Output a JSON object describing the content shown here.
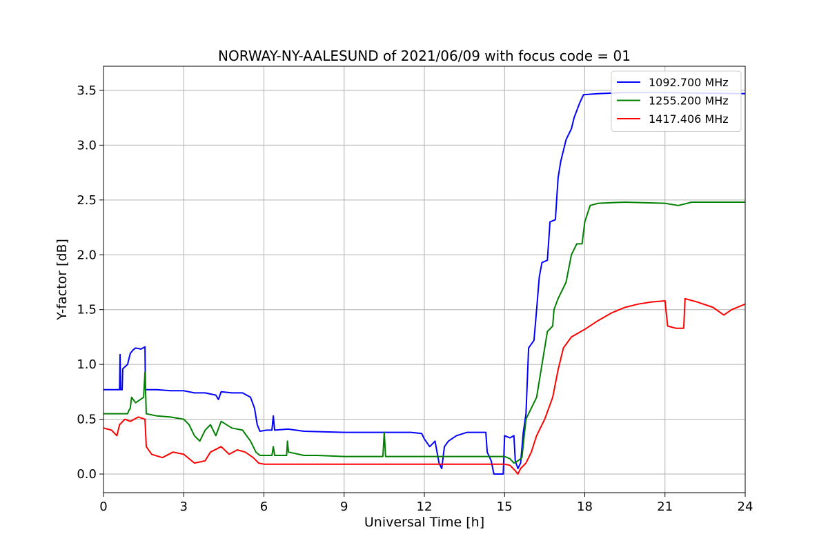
{
  "chart_data": {
    "type": "line",
    "title": "NORWAY-NY-AALESUND of 2021/06/09 with focus code = 01",
    "xlabel": "Universal Time [h]",
    "ylabel": "Y-factor [dB]",
    "xlim": [
      0,
      24
    ],
    "ylim": [
      -0.17,
      3.72
    ],
    "xticks": [
      0,
      3,
      6,
      9,
      12,
      15,
      18,
      21,
      24
    ],
    "yticks": [
      0.0,
      0.5,
      1.0,
      1.5,
      2.0,
      2.5,
      3.0,
      3.5
    ],
    "xtick_labels": [
      "0",
      "3",
      "6",
      "9",
      "12",
      "15",
      "18",
      "21",
      "24"
    ],
    "ytick_labels": [
      "0.0",
      "0.5",
      "1.0",
      "1.5",
      "2.0",
      "2.5",
      "3.0",
      "3.5"
    ],
    "grid": true,
    "legend_position": "top-right",
    "series": [
      {
        "name": "1092.700 MHz",
        "color": "#0000ff",
        "points": [
          [
            0,
            0.77
          ],
          [
            0.6,
            0.77
          ],
          [
            0.62,
            1.09
          ],
          [
            0.64,
            0.77
          ],
          [
            0.7,
            0.77
          ],
          [
            0.72,
            0.96
          ],
          [
            0.9,
            1.0
          ],
          [
            1.0,
            1.1
          ],
          [
            1.1,
            1.13
          ],
          [
            1.2,
            1.15
          ],
          [
            1.4,
            1.14
          ],
          [
            1.55,
            1.16
          ],
          [
            1.57,
            0.77
          ],
          [
            2.0,
            0.77
          ],
          [
            2.5,
            0.76
          ],
          [
            3.0,
            0.76
          ],
          [
            3.4,
            0.74
          ],
          [
            3.8,
            0.74
          ],
          [
            4.2,
            0.72
          ],
          [
            4.3,
            0.68
          ],
          [
            4.4,
            0.75
          ],
          [
            4.8,
            0.74
          ],
          [
            5.2,
            0.74
          ],
          [
            5.5,
            0.7
          ],
          [
            5.65,
            0.6
          ],
          [
            5.75,
            0.45
          ],
          [
            5.85,
            0.39
          ],
          [
            6.1,
            0.4
          ],
          [
            6.3,
            0.4
          ],
          [
            6.35,
            0.53
          ],
          [
            6.4,
            0.4
          ],
          [
            6.9,
            0.41
          ],
          [
            7.5,
            0.39
          ],
          [
            9.0,
            0.38
          ],
          [
            11.5,
            0.38
          ],
          [
            11.9,
            0.37
          ],
          [
            12.0,
            0.32
          ],
          [
            12.2,
            0.25
          ],
          [
            12.4,
            0.3
          ],
          [
            12.55,
            0.1
          ],
          [
            12.65,
            0.05
          ],
          [
            12.75,
            0.25
          ],
          [
            12.9,
            0.3
          ],
          [
            13.2,
            0.35
          ],
          [
            13.6,
            0.38
          ],
          [
            14.3,
            0.38
          ],
          [
            14.35,
            0.2
          ],
          [
            14.5,
            0.12
          ],
          [
            14.6,
            0.0
          ],
          [
            14.95,
            0.0
          ],
          [
            15.0,
            0.35
          ],
          [
            15.2,
            0.33
          ],
          [
            15.35,
            0.35
          ],
          [
            15.4,
            0.12
          ],
          [
            15.5,
            0.05
          ],
          [
            15.6,
            0.1
          ],
          [
            15.7,
            0.38
          ],
          [
            15.8,
            0.55
          ],
          [
            15.9,
            1.15
          ],
          [
            16.1,
            1.22
          ],
          [
            16.2,
            1.5
          ],
          [
            16.3,
            1.8
          ],
          [
            16.4,
            1.93
          ],
          [
            16.6,
            1.95
          ],
          [
            16.7,
            2.3
          ],
          [
            16.9,
            2.32
          ],
          [
            17.0,
            2.7
          ],
          [
            17.1,
            2.85
          ],
          [
            17.3,
            3.05
          ],
          [
            17.5,
            3.15
          ],
          [
            17.6,
            3.25
          ],
          [
            17.8,
            3.38
          ],
          [
            17.95,
            3.46
          ],
          [
            18.5,
            3.47
          ],
          [
            19.5,
            3.48
          ],
          [
            21.0,
            3.48
          ],
          [
            24.0,
            3.47
          ]
        ]
      },
      {
        "name": "1255.200 MHz",
        "color": "#008000",
        "points": [
          [
            0,
            0.55
          ],
          [
            0.9,
            0.55
          ],
          [
            0.95,
            0.58
          ],
          [
            1.0,
            0.6
          ],
          [
            1.05,
            0.7
          ],
          [
            1.2,
            0.65
          ],
          [
            1.5,
            0.7
          ],
          [
            1.55,
            0.93
          ],
          [
            1.6,
            0.55
          ],
          [
            2.0,
            0.53
          ],
          [
            2.5,
            0.52
          ],
          [
            3.0,
            0.5
          ],
          [
            3.2,
            0.45
          ],
          [
            3.4,
            0.35
          ],
          [
            3.6,
            0.3
          ],
          [
            3.8,
            0.4
          ],
          [
            4.0,
            0.45
          ],
          [
            4.2,
            0.35
          ],
          [
            4.4,
            0.48
          ],
          [
            4.8,
            0.42
          ],
          [
            5.2,
            0.4
          ],
          [
            5.5,
            0.3
          ],
          [
            5.7,
            0.2
          ],
          [
            5.85,
            0.17
          ],
          [
            6.3,
            0.17
          ],
          [
            6.35,
            0.25
          ],
          [
            6.4,
            0.17
          ],
          [
            6.85,
            0.17
          ],
          [
            6.88,
            0.3
          ],
          [
            6.92,
            0.2
          ],
          [
            7.5,
            0.17
          ],
          [
            8.0,
            0.17
          ],
          [
            9.0,
            0.16
          ],
          [
            10.45,
            0.16
          ],
          [
            10.5,
            0.38
          ],
          [
            10.55,
            0.16
          ],
          [
            12.0,
            0.16
          ],
          [
            15.0,
            0.16
          ],
          [
            15.2,
            0.14
          ],
          [
            15.35,
            0.1
          ],
          [
            15.5,
            0.12
          ],
          [
            15.65,
            0.15
          ],
          [
            15.8,
            0.5
          ],
          [
            15.9,
            0.55
          ],
          [
            16.2,
            0.7
          ],
          [
            16.4,
            1.0
          ],
          [
            16.6,
            1.3
          ],
          [
            16.8,
            1.35
          ],
          [
            16.85,
            1.5
          ],
          [
            17.0,
            1.6
          ],
          [
            17.3,
            1.75
          ],
          [
            17.5,
            2.0
          ],
          [
            17.7,
            2.1
          ],
          [
            17.9,
            2.1
          ],
          [
            18.0,
            2.3
          ],
          [
            18.2,
            2.45
          ],
          [
            18.5,
            2.47
          ],
          [
            19.5,
            2.48
          ],
          [
            21.0,
            2.47
          ],
          [
            21.5,
            2.45
          ],
          [
            22.0,
            2.48
          ],
          [
            24.0,
            2.48
          ]
        ]
      },
      {
        "name": "1417.406 MHz",
        "color": "#ff0000",
        "points": [
          [
            0,
            0.42
          ],
          [
            0.3,
            0.4
          ],
          [
            0.5,
            0.35
          ],
          [
            0.6,
            0.45
          ],
          [
            0.8,
            0.5
          ],
          [
            1.0,
            0.48
          ],
          [
            1.3,
            0.52
          ],
          [
            1.55,
            0.5
          ],
          [
            1.6,
            0.25
          ],
          [
            1.8,
            0.18
          ],
          [
            2.2,
            0.15
          ],
          [
            2.6,
            0.2
          ],
          [
            3.0,
            0.18
          ],
          [
            3.4,
            0.1
          ],
          [
            3.8,
            0.12
          ],
          [
            4.0,
            0.2
          ],
          [
            4.4,
            0.25
          ],
          [
            4.7,
            0.18
          ],
          [
            5.0,
            0.22
          ],
          [
            5.3,
            0.2
          ],
          [
            5.6,
            0.15
          ],
          [
            5.8,
            0.1
          ],
          [
            6.0,
            0.09
          ],
          [
            9.0,
            0.09
          ],
          [
            12.0,
            0.09
          ],
          [
            15.0,
            0.09
          ],
          [
            15.2,
            0.08
          ],
          [
            15.4,
            0.03
          ],
          [
            15.5,
            0.0
          ],
          [
            15.6,
            0.05
          ],
          [
            15.8,
            0.1
          ],
          [
            16.0,
            0.2
          ],
          [
            16.2,
            0.35
          ],
          [
            16.5,
            0.5
          ],
          [
            16.8,
            0.7
          ],
          [
            17.0,
            0.95
          ],
          [
            17.2,
            1.15
          ],
          [
            17.5,
            1.25
          ],
          [
            18.0,
            1.32
          ],
          [
            18.5,
            1.4
          ],
          [
            19.0,
            1.47
          ],
          [
            19.5,
            1.52
          ],
          [
            20.0,
            1.55
          ],
          [
            20.5,
            1.57
          ],
          [
            21.0,
            1.58
          ],
          [
            21.1,
            1.35
          ],
          [
            21.4,
            1.33
          ],
          [
            21.7,
            1.33
          ],
          [
            21.75,
            1.6
          ],
          [
            22.2,
            1.57
          ],
          [
            22.8,
            1.52
          ],
          [
            23.2,
            1.45
          ],
          [
            23.5,
            1.5
          ],
          [
            24.0,
            1.55
          ]
        ]
      }
    ]
  }
}
